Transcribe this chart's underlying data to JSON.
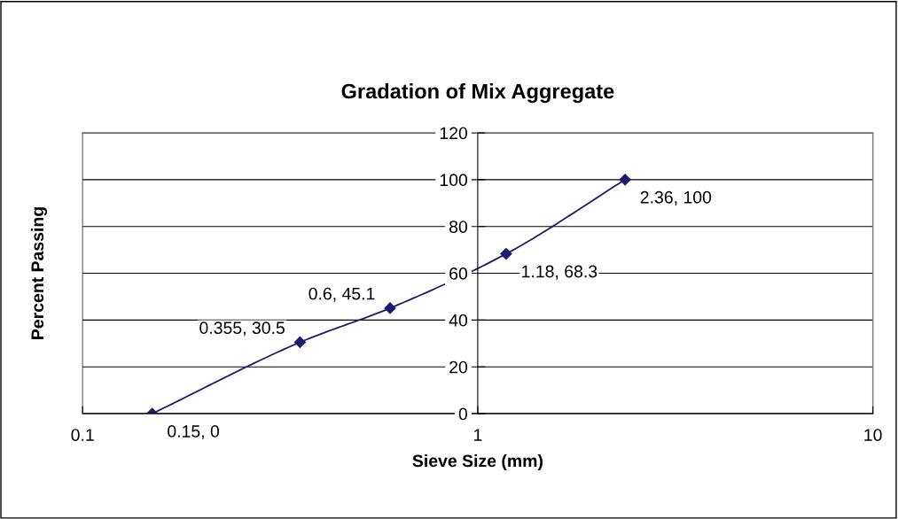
{
  "chart_data": {
    "type": "line",
    "title": "Gradation of Mix Aggregate",
    "xlabel": "Sieve Size (mm)",
    "ylabel": "Percent Passing",
    "x": [
      0.15,
      0.355,
      0.6,
      1.18,
      2.36
    ],
    "series": [
      {
        "color": "#1c1c6e",
        "values": [
          0,
          30.5,
          45.1,
          68.3,
          100
        ]
      }
    ],
    "log": "x",
    "xlim": [
      0.1,
      10
    ],
    "xticks": [
      0.1,
      1,
      10
    ],
    "ylim": [
      0,
      120
    ],
    "yticks": [
      0,
      20,
      40,
      60,
      80,
      100,
      120
    ],
    "grid": "y",
    "marker": "diamond",
    "line_style": "solid",
    "legend": false,
    "annotations": [
      {
        "text": "0.15, 0",
        "x": 0.15,
        "y": 0
      },
      {
        "text": "0.355, 30.5",
        "x": 0.355,
        "y": 30.5
      },
      {
        "text": "0.6, 45.1",
        "x": 0.6,
        "y": 45.1
      },
      {
        "text": "1.18, 68.3",
        "x": 1.18,
        "y": 68.3
      },
      {
        "text": "2.36, 100",
        "x": 2.36,
        "y": 100
      }
    ]
  }
}
